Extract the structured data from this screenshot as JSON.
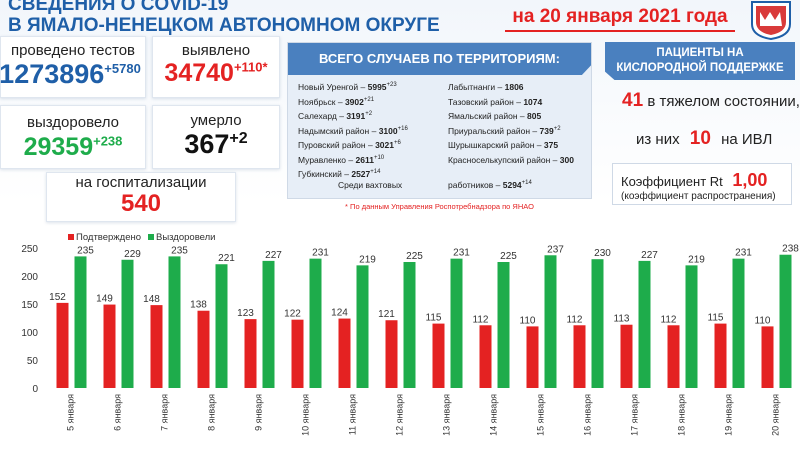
{
  "header": {
    "title_line1": "СВЕДЕНИЯ О COVID-19",
    "title_line2": "В ЯМАЛО-НЕНЕЦКОМ АВТОНОМНОМ ОКРУГЕ",
    "date": "на 20 января 2021 года"
  },
  "stats": {
    "tests_label": "проведено тестов",
    "tests_value": "1273896",
    "tests_delta": "+5780",
    "detected_label": "выявлено",
    "detected_value": "34740",
    "detected_delta": "+110*",
    "recovered_label": "выздоровело",
    "recovered_value": "29359",
    "recovered_delta": "+238",
    "died_label": "умерло",
    "died_value": "367",
    "died_delta": "+2",
    "hosp_label": "на госпитализации",
    "hosp_value": "540"
  },
  "territories": {
    "title": "ВСЕГО СЛУЧАЕВ ПО ТЕРРИТОРИЯМ:",
    "left": [
      {
        "name": "Новый Уренгой –",
        "value": "5995",
        "delta": "+23"
      },
      {
        "name": "Ноябрьск –",
        "value": "3902",
        "delta": "+21"
      },
      {
        "name": "Салехард –",
        "value": "3191",
        "delta": "+2"
      },
      {
        "name": "Надымский район –",
        "value": "3100",
        "delta": "+16"
      },
      {
        "name": "Пуровский район –",
        "value": "3021",
        "delta": "+6"
      },
      {
        "name": "Муравленко –",
        "value": "2611",
        "delta": "+10"
      },
      {
        "name": "Губкинский –",
        "value": "2527",
        "delta": "+14"
      }
    ],
    "right": [
      {
        "name": "Лабытнанги –",
        "value": "1806",
        "delta": ""
      },
      {
        "name": "Тазовский район –",
        "value": "1074",
        "delta": ""
      },
      {
        "name": "Ямальский район –",
        "value": "805",
        "delta": ""
      },
      {
        "name": "Приуральский район –",
        "value": "739",
        "delta": "+2"
      },
      {
        "name": "Шурышкарский район –",
        "value": "375",
        "delta": ""
      },
      {
        "name": "Красноселькупский район –",
        "value": "300",
        "delta": ""
      }
    ],
    "shift_left": "Среди вахтовых",
    "shift_right": "работников –",
    "shift_value": "5294",
    "shift_delta": "+14",
    "note": "* По данным Управления  Роспотребнадзора по ЯНАО"
  },
  "oxygen": {
    "title_line1": "ПАЦИЕНТЫ НА",
    "title_line2": "КИСЛОРОДНОЙ ПОДДЕРЖКЕ",
    "severe_value": "41",
    "severe_label": "в тяжелом состоянии,",
    "ivl_pre": "из них",
    "ivl_value": "10",
    "ivl_label": "на  ИВЛ",
    "rt_label": "Коэффициент Rt",
    "rt_value": "1,00",
    "rt_sub": "(коэффициент распространения)"
  },
  "colors": {
    "blue": "#4a80bf",
    "red": "#e42222",
    "green": "#1eac4b"
  },
  "chart_data": {
    "type": "bar",
    "categories": [
      "5 января",
      "6 января",
      "7 января",
      "8 января",
      "9 января",
      "10 января",
      "11 января",
      "12 января",
      "13 января",
      "14 января",
      "15 января",
      "16 января",
      "17 января",
      "18 января",
      "19 января",
      "20 января"
    ],
    "series": [
      {
        "name": "Подтверждено",
        "color": "#e42222",
        "values": [
          152,
          149,
          148,
          138,
          123,
          122,
          124,
          121,
          115,
          112,
          110,
          112,
          113,
          112,
          115,
          110
        ]
      },
      {
        "name": "Выздоровели",
        "color": "#1eac4b",
        "values": [
          235,
          229,
          235,
          221,
          227,
          231,
          219,
          225,
          231,
          225,
          237,
          230,
          227,
          219,
          231,
          238
        ]
      }
    ],
    "yticks": [
      0,
      50,
      100,
      150,
      200,
      250
    ],
    "ylim": [
      0,
      250
    ],
    "legend_position": "top-left",
    "grid": false
  }
}
